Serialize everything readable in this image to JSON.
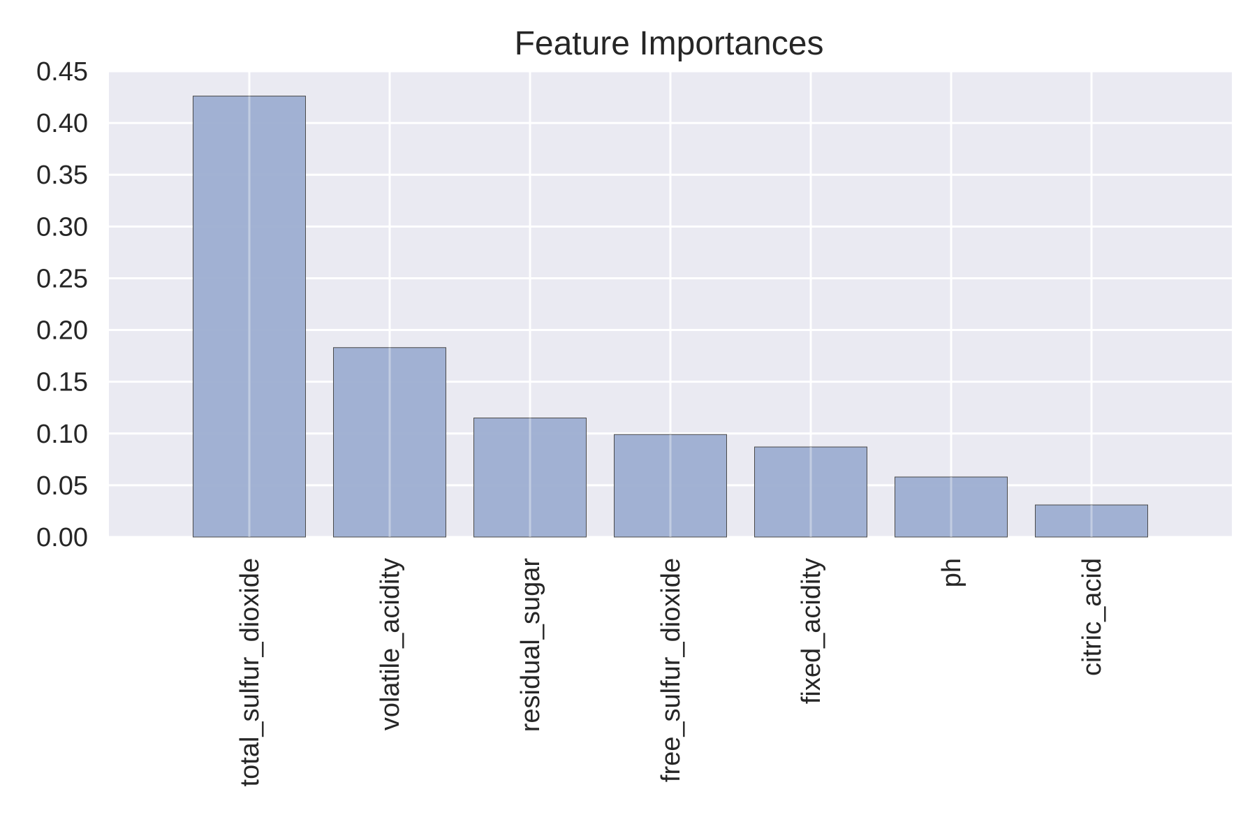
{
  "chart_data": {
    "type": "bar",
    "title": "Feature Importances",
    "xlabel": "",
    "ylabel": "",
    "categories": [
      "total_sulfur_dioxide",
      "volatile_acidity",
      "residual_sugar",
      "free_sulfur_dioxide",
      "fixed_acidity",
      "ph",
      "citric_acid"
    ],
    "values": [
      0.426,
      0.183,
      0.115,
      0.099,
      0.087,
      0.058,
      0.031
    ],
    "ylim": [
      0,
      0.45
    ],
    "yticks": [
      "0.00",
      "0.05",
      "0.10",
      "0.15",
      "0.20",
      "0.25",
      "0.30",
      "0.35",
      "0.40",
      "0.45"
    ],
    "grid": true,
    "bar_color": "#9daed1",
    "background_color": "#eaeaf2"
  }
}
